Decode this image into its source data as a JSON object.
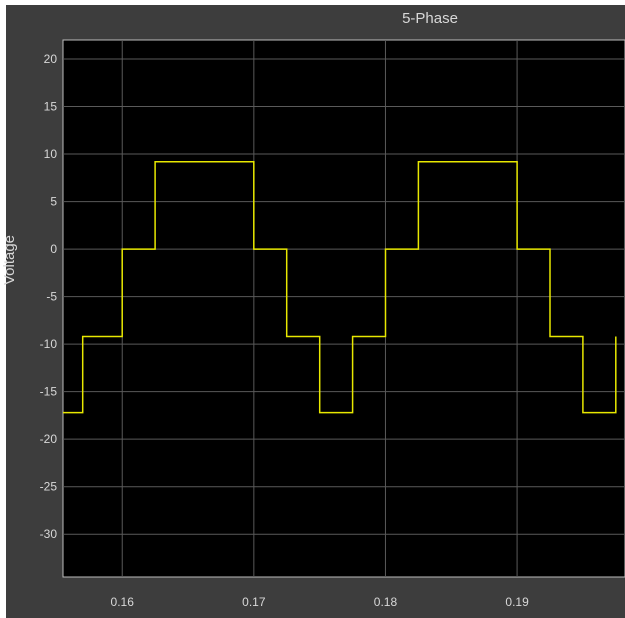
{
  "chart_data": {
    "type": "line",
    "title": "5-Phase",
    "xlabel": "",
    "ylabel": "Voltage",
    "xlim": [
      0.1555,
      0.1982
    ],
    "ylim": [
      -34.5,
      22
    ],
    "x_ticks": [
      "0.16",
      "0.17",
      "0.18",
      "0.19"
    ],
    "y_ticks": [
      "20",
      "15",
      "10",
      "5",
      "0",
      "-5",
      "-10",
      "-15",
      "-20",
      "-25",
      "-30"
    ],
    "grid": true,
    "background": "#000000",
    "line_color": "#e8e800",
    "series": [
      {
        "x": [
          0.1555,
          0.157,
          0.157,
          0.16,
          0.16,
          0.1625,
          0.1625,
          0.17,
          0.17,
          0.1725,
          0.1725,
          0.175,
          0.175,
          0.1775,
          0.1775,
          0.18,
          0.18,
          0.1825,
          0.1825,
          0.19,
          0.19,
          0.1925,
          0.1925,
          0.195,
          0.195,
          0.1975,
          0.1975
        ],
        "y": [
          -17.2,
          -17.2,
          -9.2,
          -9.2,
          0,
          0,
          9.2,
          9.2,
          0,
          0,
          -9.2,
          -9.2,
          -17.2,
          -17.2,
          -9.2,
          -9.2,
          0,
          0,
          9.2,
          9.2,
          0,
          0,
          -9.2,
          -9.2,
          -17.2,
          -17.2,
          -9.2
        ]
      }
    ]
  }
}
